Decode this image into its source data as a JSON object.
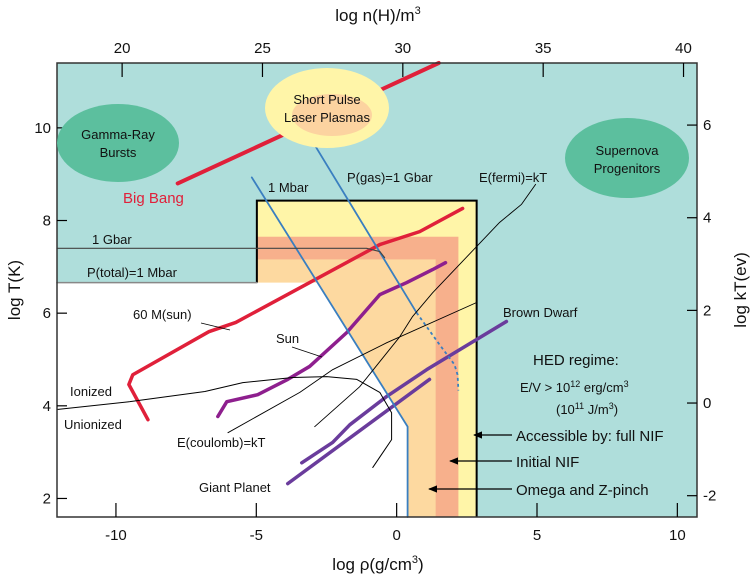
{
  "chart_data": {
    "type": "line",
    "top_axis_title": {
      "text": "log n(H)/m",
      "sup": "3"
    },
    "xlabel": {
      "text": "log ρ(g/cm",
      "sup": "3",
      "tail": ")"
    },
    "ylabel": "log T(K)",
    "y2label": "log kT(ev)",
    "xlim": [
      -12.1,
      10.7
    ],
    "ylim": [
      1.6,
      11.4
    ],
    "xticks": [
      -10,
      -5,
      0,
      5,
      10
    ],
    "yticks": [
      2,
      4,
      6,
      8,
      10
    ],
    "top_ticks": [
      20,
      25,
      30,
      35,
      40
    ],
    "top_tick_offset": 29.78,
    "right_ticks": [
      -2,
      0,
      2,
      4,
      6
    ],
    "right_tick_offset": 4.06,
    "colors": {
      "background": "#afdedb",
      "ellipse": "#5cbf9e",
      "hed_full": "#fff5a8",
      "hed_initial": "#f7b08c",
      "hed_omega": "#fdd9a0",
      "big_bang": "#e0203a",
      "sun": "#8e1f8e",
      "planet": "#6a3c9c",
      "pressure": "#3a7fc0"
    },
    "regions": {
      "hed_box": {
        "x": [
          -4.98,
          2.85
        ],
        "y": [
          1.6,
          8.43
        ]
      },
      "initial_nif": {
        "x": [
          -4.98,
          2.2
        ],
        "y": [
          1.6,
          7.65
        ]
      },
      "omega": {
        "x": [
          -4.98,
          1.39
        ],
        "y": [
          1.6,
          7.16
        ]
      },
      "unshaded_top": 6.66
    },
    "series": [
      {
        "name": "Big Bang",
        "points": [
          [
            -7.8,
            8.8
          ],
          [
            1.5,
            11.4
          ]
        ]
      },
      {
        "name": "60 M(sun)",
        "points": [
          [
            -8.86,
            3.7
          ],
          [
            -9.54,
            4.46
          ],
          [
            -9.4,
            4.67
          ],
          [
            -6.69,
            5.6
          ],
          [
            -5.73,
            5.8
          ],
          [
            -3.1,
            6.66
          ],
          [
            -0.6,
            7.48
          ],
          [
            0.82,
            7.76
          ],
          [
            2.35,
            8.26
          ]
        ]
      },
      {
        "name": "Sun",
        "points": [
          [
            -6.37,
            3.77
          ],
          [
            -6.05,
            4.09
          ],
          [
            -4.95,
            4.24
          ],
          [
            -3.88,
            4.57
          ],
          [
            -3.1,
            4.85
          ],
          [
            -1.78,
            5.58
          ],
          [
            -0.6,
            6.4
          ],
          [
            0.36,
            6.66
          ],
          [
            1.28,
            6.94
          ],
          [
            1.74,
            7.09
          ]
        ]
      },
      {
        "name": "Brown Dwarf",
        "points": [
          [
            -3.38,
            2.77
          ],
          [
            -2.28,
            3.21
          ],
          [
            -1.67,
            3.59
          ],
          [
            -0.36,
            4.2
          ],
          [
            1.07,
            4.78
          ],
          [
            3.91,
            5.82
          ]
        ]
      },
      {
        "name": "Giant Planet",
        "points": [
          [
            -3.88,
            2.32
          ],
          [
            1.17,
            4.57
          ]
        ]
      },
      {
        "name": "1 Mbar",
        "points": [
          [
            -5.16,
            8.93
          ],
          [
            0.39,
            3.55
          ],
          [
            0.39,
            1.6
          ]
        ]
      },
      {
        "name": "P(gas)=1 Gbar",
        "points": [
          [
            -3.1,
            9.81
          ],
          [
            0.71,
            6.01
          ]
        ],
        "dashed_points": [
          [
            0.71,
            6.01
          ],
          [
            1.53,
            5.32
          ],
          [
            2.06,
            4.89
          ],
          [
            2.17,
            4.67
          ],
          [
            2.2,
            4.33
          ]
        ]
      },
      {
        "name": "Ionization boundary",
        "points": [
          [
            -12.1,
            3.92
          ],
          [
            -9.5,
            4.09
          ],
          [
            -6.83,
            4.31
          ],
          [
            -5.48,
            4.5
          ],
          [
            -3.7,
            4.61
          ],
          [
            -2.49,
            4.63
          ],
          [
            -1.42,
            4.57
          ],
          [
            -0.6,
            4.29
          ],
          [
            -0.18,
            3.85
          ],
          [
            -0.18,
            3.27
          ],
          [
            -0.85,
            2.67
          ]
        ]
      },
      {
        "name": "E(coulomb)=kT",
        "points": [
          [
            -6.01,
            3.42
          ],
          [
            -3.45,
            4.29
          ],
          [
            -2.28,
            4.78
          ],
          [
            -0.36,
            5.36
          ],
          [
            2.85,
            6.23
          ]
        ]
      },
      {
        "name": "E(fermi)=kT",
        "points": [
          [
            -2.92,
            3.55
          ],
          [
            -1.32,
            4.41
          ],
          [
            0.11,
            5.49
          ],
          [
            0.57,
            5.93
          ],
          [
            1.28,
            6.44
          ],
          [
            3.67,
            7.96
          ],
          [
            4.45,
            8.35
          ],
          [
            4.95,
            8.78
          ]
        ]
      },
      {
        "name": "1 Gbar",
        "points": [
          [
            -12.1,
            7.4
          ],
          [
            -1.07,
            7.4
          ],
          [
            -0.6,
            7.33
          ],
          [
            -0.43,
            7.2
          ]
        ]
      },
      {
        "name": "P(total)=1 Mbar",
        "points": [
          [
            -12.1,
            6.66
          ],
          [
            -4.98,
            6.66
          ]
        ]
      }
    ],
    "labels": {
      "gamma1": "Gamma-Ray",
      "gamma2": "Bursts",
      "short1": "Short Pulse",
      "short2": "Laser Plasmas",
      "super1": "Supernova",
      "super2": "Progenitors",
      "big_bang": "Big Bang",
      "mbar": "1 Mbar",
      "pgas": "P(gas)=1 Gbar",
      "efermi": "E(fermi)=kT",
      "gbar": "1 Gbar",
      "ptotal": "P(total)=1 Mbar",
      "msun": "60 M(sun)",
      "sun": "Sun",
      "ionized": "Ionized",
      "unionized": "Unionized",
      "ecoulomb": "E(coulomb)=kT",
      "giant": "Giant Planet",
      "brown": "Brown Dwarf",
      "hed": "HED regime:",
      "ev": {
        "a": "E/V > 10",
        "sup1": "12",
        "b": " erg/cm",
        "sup2": "3"
      },
      "jm": {
        "a": "(10",
        "sup1": "11",
        "b": " J/m",
        "sup2": "3",
        "c": ")"
      },
      "full_nif": "Accessible by: full NIF",
      "initial_nif": "Initial NIF",
      "omega": "Omega and Z-pinch"
    }
  }
}
